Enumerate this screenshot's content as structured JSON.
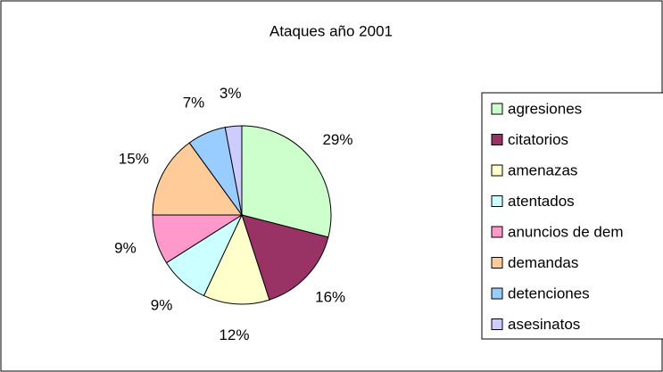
{
  "chart_data": {
    "type": "pie",
    "title": "Ataques año 2001",
    "categories": [
      "agresiones",
      "citatorios",
      "amenazas",
      "atentados",
      "anuncios de dem",
      "demandas",
      "detenciones",
      "asesinatos"
    ],
    "values": [
      29,
      16,
      12,
      9,
      9,
      15,
      7,
      3
    ],
    "value_labels": [
      "29%",
      "16%",
      "12%",
      "9%",
      "9%",
      "15%",
      "7%",
      "3%"
    ],
    "colors": [
      "#ccffcc",
      "#993366",
      "#ffffcc",
      "#ccffff",
      "#ff99cc",
      "#ffcc99",
      "#99ccff",
      "#ccccff"
    ],
    "legend": "right"
  }
}
